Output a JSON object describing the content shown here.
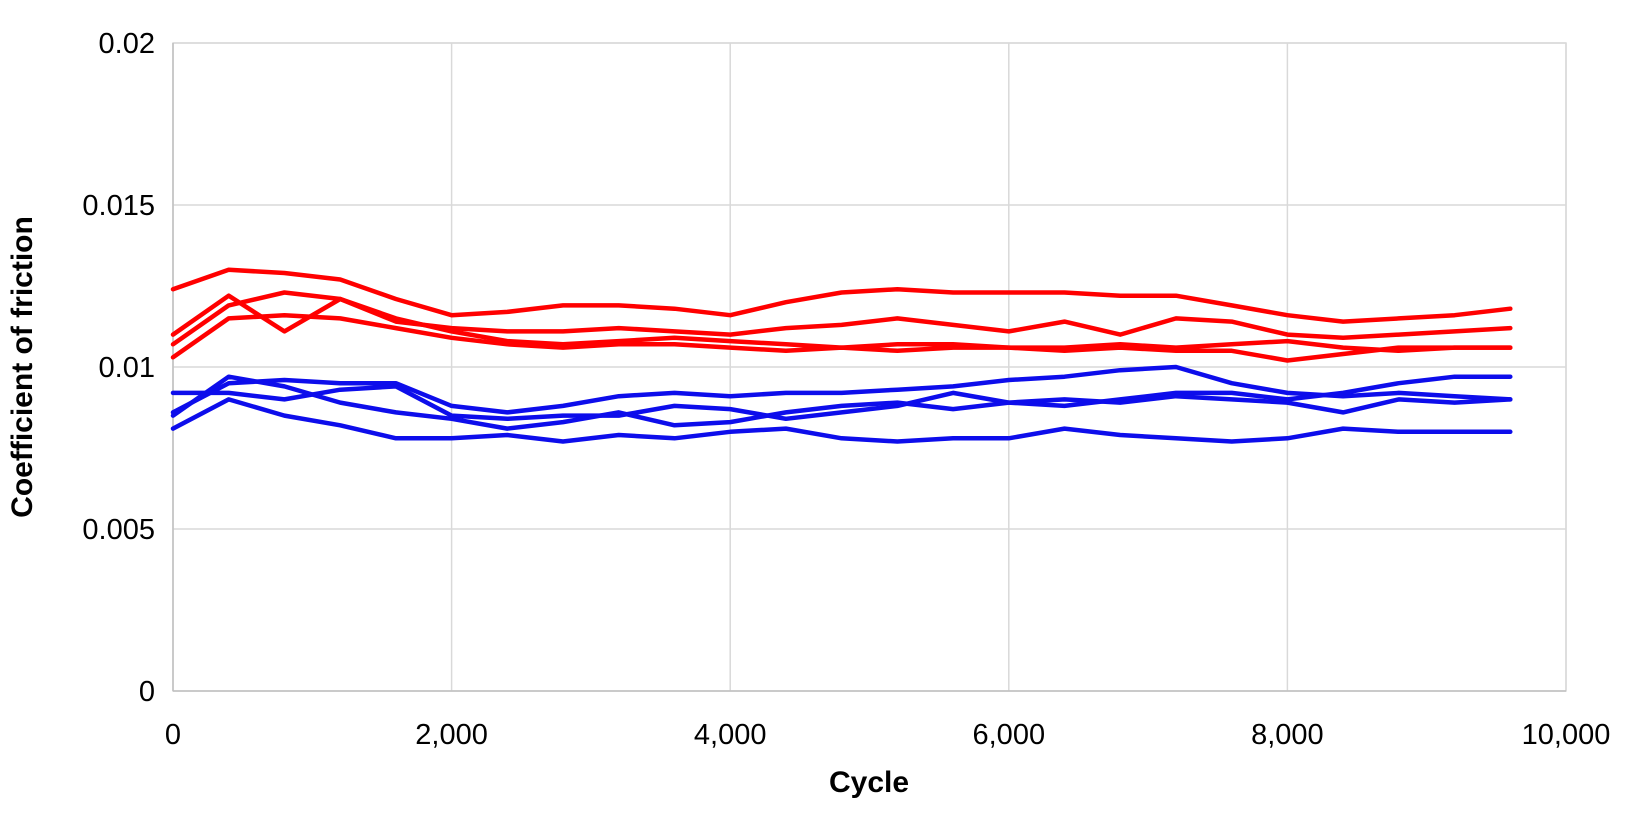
{
  "chart_data": {
    "type": "line",
    "title": "",
    "xlabel": "Cycle",
    "ylabel": "Coefficient of friction",
    "xlim": [
      0,
      10000
    ],
    "ylim": [
      0,
      0.02
    ],
    "x_ticks": [
      0,
      2000,
      4000,
      6000,
      8000,
      10000
    ],
    "x_tick_labels": [
      "0",
      "2,000",
      "4,000",
      "6,000",
      "8,000",
      "10,000"
    ],
    "y_ticks": [
      0,
      0.005,
      0.01,
      0.015,
      0.02
    ],
    "y_tick_labels": [
      "0",
      "0.005",
      "0.01",
      "0.015",
      "0.02"
    ],
    "grid": true,
    "legend_position": "none",
    "x": [
      0,
      400,
      800,
      1200,
      1600,
      2000,
      2400,
      2800,
      3200,
      3600,
      4000,
      4400,
      4800,
      5200,
      5600,
      6000,
      6400,
      6800,
      7200,
      7600,
      8000,
      8400,
      8800,
      9200,
      9600
    ],
    "series": [
      {
        "name": "red-1",
        "color": "#FF0000",
        "values": [
          0.0124,
          0.013,
          0.0129,
          0.0127,
          0.0121,
          0.0116,
          0.0117,
          0.0119,
          0.0119,
          0.0118,
          0.0116,
          0.012,
          0.0123,
          0.0124,
          0.0123,
          0.0123,
          0.0123,
          0.0122,
          0.0122,
          0.0119,
          0.0116,
          0.0114,
          0.0115,
          0.0116,
          0.0118
        ]
      },
      {
        "name": "red-2",
        "color": "#FF0000",
        "values": [
          0.0107,
          0.0119,
          0.0123,
          0.0121,
          0.0114,
          0.0112,
          0.0111,
          0.0111,
          0.0112,
          0.0111,
          0.011,
          0.0112,
          0.0113,
          0.0115,
          0.0113,
          0.0111,
          0.0114,
          0.011,
          0.0115,
          0.0114,
          0.011,
          0.0109,
          0.011,
          0.0111,
          0.0112
        ]
      },
      {
        "name": "red-3",
        "color": "#FF0000",
        "values": [
          0.011,
          0.0122,
          0.0111,
          0.0121,
          0.0115,
          0.0111,
          0.0108,
          0.0107,
          0.0108,
          0.0109,
          0.0108,
          0.0107,
          0.0106,
          0.0107,
          0.0107,
          0.0106,
          0.0106,
          0.0107,
          0.0106,
          0.0107,
          0.0108,
          0.0106,
          0.0105,
          0.0106,
          0.0106
        ]
      },
      {
        "name": "red-4",
        "color": "#FF0000",
        "values": [
          0.0103,
          0.0115,
          0.0116,
          0.0115,
          0.0112,
          0.0109,
          0.0107,
          0.0106,
          0.0107,
          0.0107,
          0.0106,
          0.0105,
          0.0106,
          0.0105,
          0.0106,
          0.0106,
          0.0105,
          0.0106,
          0.0105,
          0.0105,
          0.0102,
          0.0104,
          0.0106,
          0.0106,
          0.0106
        ]
      },
      {
        "name": "blue-1",
        "color": "#0D0DEB",
        "values": [
          0.0086,
          0.0095,
          0.0096,
          0.0095,
          0.0095,
          0.0088,
          0.0086,
          0.0088,
          0.0091,
          0.0092,
          0.0091,
          0.0092,
          0.0092,
          0.0093,
          0.0094,
          0.0096,
          0.0097,
          0.0099,
          0.01,
          0.0095,
          0.0092,
          0.0091,
          0.0092,
          0.0091,
          0.009
        ]
      },
      {
        "name": "blue-2",
        "color": "#0D0DEB",
        "values": [
          0.0092,
          0.0092,
          0.009,
          0.0093,
          0.0094,
          0.0085,
          0.0084,
          0.0085,
          0.0085,
          0.0088,
          0.0087,
          0.0084,
          0.0086,
          0.0088,
          0.0092,
          0.0089,
          0.0088,
          0.009,
          0.0092,
          0.0092,
          0.009,
          0.0092,
          0.0095,
          0.0097,
          0.0097
        ]
      },
      {
        "name": "blue-3",
        "color": "#0D0DEB",
        "values": [
          0.0085,
          0.0097,
          0.0094,
          0.0089,
          0.0086,
          0.0084,
          0.0081,
          0.0083,
          0.0086,
          0.0082,
          0.0083,
          0.0086,
          0.0088,
          0.0089,
          0.0087,
          0.0089,
          0.009,
          0.0089,
          0.0091,
          0.009,
          0.0089,
          0.0086,
          0.009,
          0.0089,
          0.009
        ]
      },
      {
        "name": "blue-4",
        "color": "#0D0DEB",
        "values": [
          0.0081,
          0.009,
          0.0085,
          0.0082,
          0.0078,
          0.0078,
          0.0079,
          0.0077,
          0.0079,
          0.0078,
          0.008,
          0.0081,
          0.0078,
          0.0077,
          0.0078,
          0.0078,
          0.0081,
          0.0079,
          0.0078,
          0.0077,
          0.0078,
          0.0081,
          0.008,
          0.008,
          0.008
        ]
      }
    ]
  },
  "colors": {
    "red_series": "#FF0000",
    "blue_series": "#0D0DEB",
    "gridline": "#D9D9D9",
    "axis_line": "#BFBFBF",
    "background": "#FFFFFF",
    "text": "#000000"
  }
}
